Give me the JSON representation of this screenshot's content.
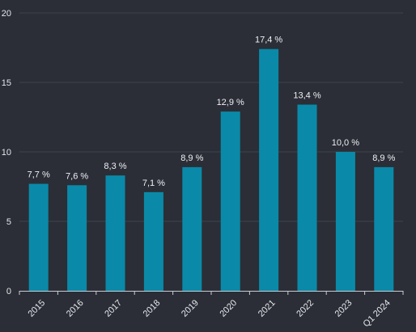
{
  "chart_data": {
    "type": "bar",
    "categories": [
      "2015",
      "2016",
      "2017",
      "2018",
      "2019",
      "2020",
      "2021",
      "2022",
      "2023",
      "Q1 2024"
    ],
    "values": [
      7.7,
      7.6,
      8.3,
      7.1,
      8.9,
      12.9,
      17.4,
      13.4,
      10.0,
      8.9
    ],
    "value_labels": [
      "7,7 %",
      "7,6 %",
      "8,3 %",
      "7,1 %",
      "8,9 %",
      "12,9 %",
      "17,4 %",
      "13,4 %",
      "10,0 %",
      "8,9 %"
    ],
    "y_ticks": [
      0,
      5,
      10,
      15,
      20
    ],
    "y_tick_labels": [
      "0",
      "5",
      "10",
      "15",
      "20"
    ],
    "ylim": [
      0,
      20
    ],
    "grid": true,
    "legend": "none",
    "colors": {
      "background": "#2b2e37",
      "bar": "#0a8aa8",
      "grid": "#3d414b",
      "text": "#e6e8ec"
    }
  }
}
